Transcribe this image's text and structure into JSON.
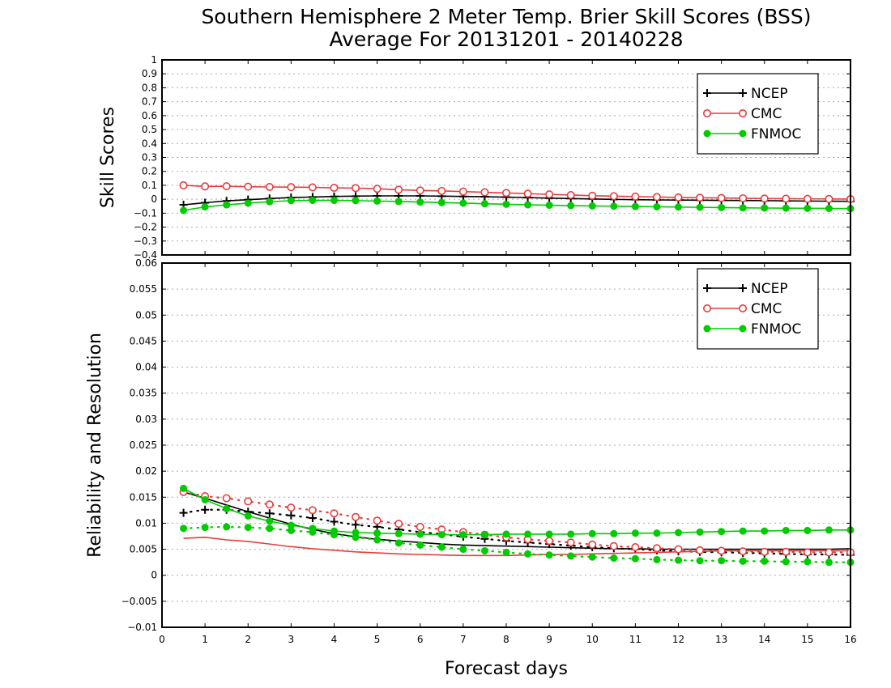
{
  "chart_data": {
    "title": "Southern Hemisphere 2 Meter Temp. Brier Skill Scores (BSS)",
    "subtitle": "Average For 20131201 - 20140228",
    "xlabel": "Forecast days",
    "xlim": [
      0,
      16
    ],
    "xticks": [
      "0",
      "1",
      "2",
      "3",
      "4",
      "5",
      "6",
      "7",
      "8",
      "9",
      "10",
      "11",
      "12",
      "13",
      "14",
      "15",
      "16"
    ],
    "x": [
      0.5,
      1,
      1.5,
      2,
      2.5,
      3,
      3.5,
      4,
      4.5,
      5,
      5.5,
      6,
      6.5,
      7,
      7.5,
      8,
      8.5,
      9,
      9.5,
      10,
      10.5,
      11,
      11.5,
      12,
      12.5,
      13,
      13.5,
      14,
      14.5,
      15,
      15.5,
      16
    ],
    "colors": {
      "NCEP": "#000000",
      "CMC": "#e83c3c",
      "FNMOC": "#00cc00"
    },
    "panels": [
      {
        "type": "line",
        "ylabel": "Skill Scores",
        "ylim": [
          -0.4,
          1
        ],
        "yticks": [
          "1",
          "0.9",
          "0.8",
          "0.7",
          "0.6",
          "0.5",
          "0.4",
          "0.3",
          "0.2",
          "0.1",
          "0",
          "−0.1",
          "−0.2",
          "−0.3",
          "−0.4"
        ],
        "grid": true,
        "legend_position": "top-right",
        "series": [
          {
            "name": "NCEP",
            "marker": "plus",
            "style": "solid",
            "values": [
              -0.04,
              -0.025,
              -0.012,
              -0.003,
              0.005,
              0.012,
              0.016,
              0.02,
              0.022,
              0.024,
              0.024,
              0.024,
              0.022,
              0.02,
              0.018,
              0.015,
              0.012,
              0.008,
              0.005,
              0.002,
              -0.001,
              -0.003,
              -0.005,
              -0.006,
              -0.007,
              -0.008,
              -0.009,
              -0.01,
              -0.012,
              -0.013,
              -0.014,
              -0.015
            ]
          },
          {
            "name": "CMC",
            "marker": "open-circle",
            "style": "solid",
            "values": [
              0.1,
              0.092,
              0.093,
              0.09,
              0.088,
              0.087,
              0.085,
              0.082,
              0.08,
              0.075,
              0.068,
              0.063,
              0.06,
              0.055,
              0.05,
              0.045,
              0.04,
              0.035,
              0.03,
              0.025,
              0.022,
              0.019,
              0.016,
              0.013,
              0.011,
              0.009,
              0.007,
              0.005,
              0.004,
              0.003,
              0.002,
              0.001
            ]
          },
          {
            "name": "FNMOC",
            "marker": "filled-circle",
            "style": "solid",
            "values": [
              -0.08,
              -0.055,
              -0.04,
              -0.028,
              -0.018,
              -0.01,
              -0.008,
              -0.008,
              -0.01,
              -0.013,
              -0.016,
              -0.02,
              -0.024,
              -0.028,
              -0.032,
              -0.036,
              -0.04,
              -0.043,
              -0.046,
              -0.048,
              -0.05,
              -0.052,
              -0.054,
              -0.056,
              -0.058,
              -0.06,
              -0.062,
              -0.063,
              -0.064,
              -0.065,
              -0.066,
              -0.067
            ]
          }
        ]
      },
      {
        "type": "line",
        "ylabel": "Reliability and Resolution",
        "ylim": [
          -0.01,
          0.06
        ],
        "yticks": [
          "0.06",
          "0.055",
          "0.05",
          "0.045",
          "0.04",
          "0.035",
          "0.03",
          "0.025",
          "0.02",
          "0.015",
          "0.01",
          "0.005",
          "0",
          "−0.005",
          "−0.01"
        ],
        "grid": true,
        "legend_position": "top-right",
        "series": [
          {
            "name": "NCEP",
            "marker": "none",
            "style": "solid",
            "metric": "reliability",
            "values": [
              0.016,
              0.0148,
              0.0135,
              0.0122,
              0.011,
              0.0098,
              0.0088,
              0.008,
              0.0074,
              0.0069,
              0.0066,
              0.0063,
              0.006,
              0.0058,
              0.0057,
              0.0056,
              0.0055,
              0.0054,
              0.0053,
              0.0052,
              0.0051,
              0.0051,
              0.005,
              0.005,
              0.005,
              0.005,
              0.005,
              0.005,
              0.005,
              0.005,
              0.005,
              0.0051
            ]
          },
          {
            "name": "NCEP",
            "marker": "plus",
            "style": "dotted",
            "metric": "resolution",
            "values": [
              0.012,
              0.0126,
              0.0126,
              0.0122,
              0.0119,
              0.0115,
              0.011,
              0.0103,
              0.0097,
              0.0093,
              0.0088,
              0.0083,
              0.0079,
              0.0074,
              0.007,
              0.0066,
              0.0063,
              0.006,
              0.0057,
              0.0054,
              0.0052,
              0.005,
              0.0048,
              0.0046,
              0.0045,
              0.0044,
              0.0043,
              0.0042,
              0.0041,
              0.004,
              0.004,
              0.0039
            ]
          },
          {
            "name": "CMC",
            "marker": "none",
            "style": "solid",
            "metric": "reliability",
            "values": [
              0.0071,
              0.0073,
              0.0068,
              0.0065,
              0.006,
              0.0055,
              0.0051,
              0.0048,
              0.0045,
              0.0043,
              0.0041,
              0.004,
              0.0039,
              0.0038,
              0.0038,
              0.0038,
              0.0039,
              0.004,
              0.004,
              0.0041,
              0.0042,
              0.0043,
              0.0044,
              0.0045,
              0.0046,
              0.0047,
              0.0047,
              0.0047,
              0.0047,
              0.0047,
              0.0047,
              0.0047
            ]
          },
          {
            "name": "CMC",
            "marker": "open-circle",
            "style": "dotted",
            "metric": "resolution",
            "values": [
              0.016,
              0.0152,
              0.0148,
              0.0142,
              0.0136,
              0.013,
              0.0125,
              0.0119,
              0.0112,
              0.0105,
              0.0099,
              0.0093,
              0.0088,
              0.0083,
              0.0078,
              0.0073,
              0.0069,
              0.0066,
              0.0063,
              0.0059,
              0.0056,
              0.0054,
              0.0052,
              0.005,
              0.0048,
              0.0047,
              0.0046,
              0.0045,
              0.0045,
              0.0044,
              0.0044,
              0.0044
            ]
          },
          {
            "name": "FNMOC",
            "marker": "filled-circle",
            "style": "solid",
            "metric": "reliability",
            "values": [
              0.0167,
              0.0145,
              0.0128,
              0.0114,
              0.0104,
              0.0096,
              0.009,
              0.0085,
              0.0082,
              0.0081,
              0.008,
              0.0079,
              0.0078,
              0.0078,
              0.0078,
              0.0079,
              0.0079,
              0.0079,
              0.0079,
              0.008,
              0.008,
              0.0081,
              0.0081,
              0.0082,
              0.0083,
              0.0084,
              0.0085,
              0.0085,
              0.0086,
              0.0086,
              0.0087,
              0.0087
            ]
          },
          {
            "name": "FNMOC",
            "marker": "filled-circle",
            "style": "dotted",
            "metric": "resolution",
            "values": [
              0.009,
              0.0092,
              0.0093,
              0.0092,
              0.009,
              0.0086,
              0.0083,
              0.0078,
              0.0073,
              0.0068,
              0.0062,
              0.0058,
              0.0054,
              0.005,
              0.0047,
              0.0044,
              0.0041,
              0.0039,
              0.0037,
              0.0035,
              0.0033,
              0.0032,
              0.003,
              0.0029,
              0.0028,
              0.0028,
              0.0027,
              0.0027,
              0.0026,
              0.0026,
              0.0025,
              0.0025
            ]
          }
        ]
      }
    ]
  }
}
